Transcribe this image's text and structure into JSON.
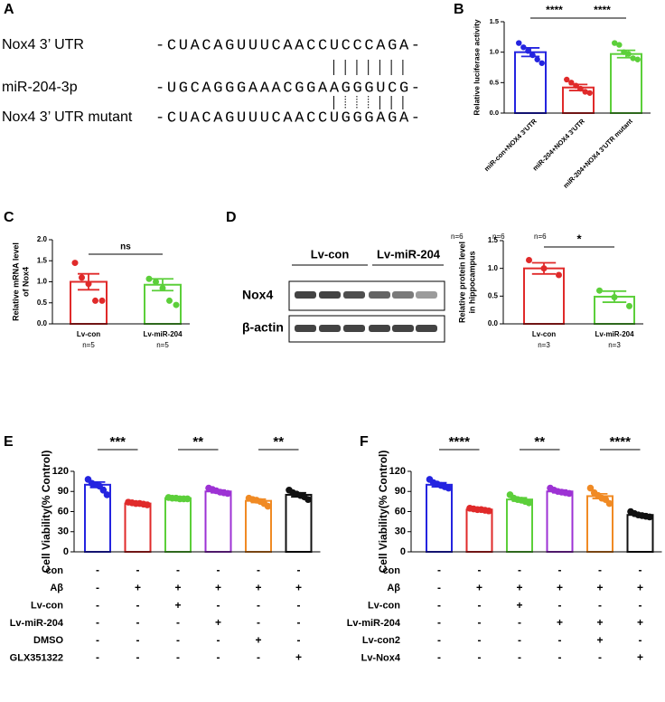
{
  "panel_letters": [
    "A",
    "B",
    "C",
    "D",
    "E",
    "F"
  ],
  "alignment": {
    "rows": [
      {
        "label": "Nox4 3’ UTR",
        "sequence": "-CUACAGUUUCAACCUCCCAGA-"
      },
      {
        "label": "miR-204-3p",
        "sequence": "-UGCAGGGAAACGGAAGGGUCG-"
      },
      {
        "label": "Nox4 3’ UTR mutant",
        "sequence": "-CUACAGUUUCAACCUGGGAGA-"
      }
    ]
  },
  "blot": {
    "lanes": [
      "Lv-con",
      "Lv-miR-204"
    ],
    "rows": [
      "Nox4",
      "β-actin"
    ]
  },
  "chart_data": [
    {
      "type": "bar",
      "ylabel": [
        "Relative luciferase activity"
      ],
      "categories": [
        "miR-con+NOX4 3'UTR",
        "miR-204+NOX4 3'UTR",
        "miR-204+NOX4 3'UTR mutant"
      ],
      "values": [
        1.0,
        0.42,
        0.97
      ],
      "errors": [
        0.07,
        0.05,
        0.06
      ],
      "points": [
        [
          1.15,
          1.08,
          1.02,
          0.95,
          0.88,
          0.82
        ],
        [
          0.55,
          0.5,
          0.45,
          0.4,
          0.35,
          0.33
        ],
        [
          1.15,
          1.12,
          1.0,
          0.97,
          0.9,
          0.88
        ]
      ],
      "colors": [
        "#2424e0",
        "#e02a2a",
        "#5ccf3a"
      ],
      "ylim": [
        0,
        1.5
      ],
      "yticks": [
        {
          "value": 0,
          "label": "0.0"
        },
        0.5,
        {
          "value": 1,
          "label": "1.0"
        },
        1.5
      ],
      "comparisons": [
        {
          "groups": [
            0,
            1
          ],
          "label": "****"
        },
        {
          "groups": [
            1,
            2
          ],
          "label": "****"
        }
      ],
      "n_labels": [
        "n=6",
        "n=6",
        "n=6"
      ]
    },
    {
      "type": "bar",
      "ylabel": [
        "Relative mRNA level",
        "of Nox4"
      ],
      "categories": [
        "Lv-con",
        "Lv-miR-204"
      ],
      "values": [
        1.0,
        0.93
      ],
      "errors": [
        0.19,
        0.14
      ],
      "points": [
        [
          1.45,
          1.1,
          0.95,
          0.55,
          0.55
        ],
        [
          1.07,
          1.0,
          0.85,
          0.55,
          0.45
        ]
      ],
      "colors": [
        "#e02a2a",
        "#5ccf3a"
      ],
      "ylim": [
        0,
        2
      ],
      "yticks": [
        {
          "value": 0,
          "label": "0.0"
        },
        0.5,
        {
          "value": 1,
          "label": "1.0"
        },
        1.5,
        {
          "value": 2,
          "label": "2.0"
        }
      ],
      "comparisons": [
        {
          "groups": [
            0,
            1
          ],
          "label": "ns"
        }
      ],
      "n_labels": [
        "n=5",
        "n=5"
      ]
    },
    {
      "type": "bar",
      "ylabel": [
        "Relative protein level",
        "in hippocampus"
      ],
      "categories": [
        "Lv-con",
        "Lv-miR-204"
      ],
      "values": [
        1.0,
        0.49
      ],
      "errors": [
        0.1,
        0.1
      ],
      "points": [
        [
          1.15,
          1.0,
          0.88
        ],
        [
          0.6,
          0.48,
          0.32
        ]
      ],
      "colors": [
        "#e02a2a",
        "#5ccf3a"
      ],
      "ylim": [
        0,
        1.5
      ],
      "yticks": [
        {
          "value": 0,
          "label": "0.0"
        },
        0.5,
        {
          "value": 1,
          "label": "1.0"
        },
        1.5
      ],
      "comparisons": [
        {
          "groups": [
            0,
            1
          ],
          "label": "*"
        }
      ],
      "n_labels": [
        "n=3",
        "n=3"
      ]
    },
    {
      "type": "bar",
      "ylabel": [
        "Cell Viability(% Control)"
      ],
      "categories": [
        null,
        null,
        null,
        null,
        null,
        null
      ],
      "values": [
        100,
        72,
        80,
        90,
        76,
        85
      ],
      "errors": [
        4,
        1,
        1,
        2,
        2.5,
        3
      ],
      "points": [
        [
          108,
          102,
          100,
          98,
          92,
          85
        ],
        [
          74,
          73,
          72,
          72,
          71,
          70
        ],
        [
          81,
          80,
          80,
          79,
          79,
          79
        ],
        [
          95,
          93,
          91,
          89,
          88,
          87
        ],
        [
          80,
          78,
          77,
          75,
          72,
          68
        ],
        [
          92,
          88,
          86,
          84,
          82,
          78
        ]
      ],
      "colors": [
        "#2424e0",
        "#e02a2a",
        "#5ccf3a",
        "#9d32d4",
        "#f08a24",
        "#111111"
      ],
      "ylim": [
        0,
        120
      ],
      "yticks": [
        0,
        30,
        60,
        90,
        120
      ],
      "comparisons": [
        {
          "groups": [
            0,
            1
          ],
          "label": "***"
        },
        {
          "groups": [
            2,
            3
          ],
          "label": "**"
        },
        {
          "groups": [
            4,
            5
          ],
          "label": "**"
        }
      ],
      "treatments": [
        {
          "label": "con",
          "signs": [
            "-",
            "-",
            "-",
            "-",
            "-",
            "-"
          ]
        },
        {
          "label": "Aβ",
          "signs": [
            "-",
            "+",
            "+",
            "+",
            "+",
            "+"
          ]
        },
        {
          "label": "Lv-con",
          "signs": [
            "-",
            "-",
            "+",
            "-",
            "-",
            "-"
          ]
        },
        {
          "label": "Lv-miR-204",
          "signs": [
            "-",
            "-",
            "-",
            "+",
            "-",
            "-"
          ]
        },
        {
          "label": "DMSO",
          "signs": [
            "-",
            "-",
            "-",
            "-",
            "+",
            "-"
          ]
        },
        {
          "label": "GLX351322",
          "signs": [
            "-",
            "-",
            "-",
            "-",
            "-",
            "+"
          ]
        }
      ]
    },
    {
      "type": "bar",
      "ylabel": [
        "Cell Viability(% Control)"
      ],
      "categories": [
        null,
        null,
        null,
        null,
        null,
        null
      ],
      "values": [
        100,
        63,
        78,
        90,
        83,
        55
      ],
      "errors": [
        3,
        1,
        2.5,
        2,
        3.5,
        1.5
      ],
      "points": [
        [
          108,
          103,
          101,
          99,
          97,
          95
        ],
        [
          65,
          64,
          63,
          63,
          62,
          61
        ],
        [
          85,
          80,
          78,
          77,
          75,
          73
        ],
        [
          95,
          92,
          90,
          89,
          88,
          87
        ],
        [
          95,
          88,
          84,
          80,
          78,
          72
        ],
        [
          60,
          57,
          55,
          54,
          53,
          52
        ]
      ],
      "colors": [
        "#2424e0",
        "#e02a2a",
        "#5ccf3a",
        "#9d32d4",
        "#f08a24",
        "#111111"
      ],
      "ylim": [
        0,
        120
      ],
      "yticks": [
        0,
        30,
        60,
        90,
        120
      ],
      "comparisons": [
        {
          "groups": [
            0,
            1
          ],
          "label": "****"
        },
        {
          "groups": [
            2,
            3
          ],
          "label": "**"
        },
        {
          "groups": [
            4,
            5
          ],
          "label": "****"
        }
      ],
      "treatments": [
        {
          "label": "con",
          "signs": [
            "-",
            "-",
            "-",
            "-",
            "-",
            "-"
          ]
        },
        {
          "label": "Aβ",
          "signs": [
            "-",
            "+",
            "+",
            "+",
            "+",
            "+"
          ]
        },
        {
          "label": "Lv-con",
          "signs": [
            "-",
            "-",
            "+",
            "-",
            "-",
            "-"
          ]
        },
        {
          "label": "Lv-miR-204",
          "signs": [
            "-",
            "-",
            "-",
            "+",
            "+",
            "+"
          ]
        },
        {
          "label": "Lv-con2",
          "signs": [
            "-",
            "-",
            "-",
            "-",
            "+",
            "-"
          ]
        },
        {
          "label": "Lv-Nox4",
          "signs": [
            "-",
            "-",
            "-",
            "-",
            "-",
            "+"
          ]
        }
      ]
    }
  ]
}
